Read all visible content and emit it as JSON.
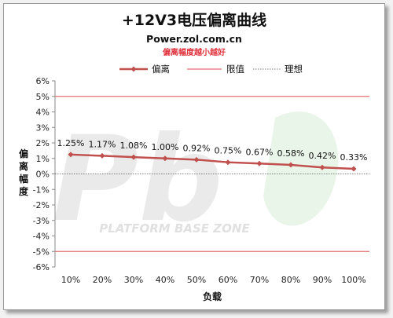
{
  "header": {
    "title": "+12V3电压偏离曲线",
    "subtitle": "Power.zol.com.cn",
    "note": "偏离幅度越小越好"
  },
  "watermark": {
    "logo_text": "Pb",
    "caption": "PLATFORM BASE ZONE"
  },
  "colors": {
    "series": "#c0504d",
    "limit": "#e07070",
    "ideal": "#555555",
    "watermark": "#d9d9d9"
  },
  "chart_data": {
    "type": "line",
    "categories": [
      "10%",
      "20%",
      "30%",
      "40%",
      "50%",
      "60%",
      "70%",
      "80%",
      "90%",
      "100%"
    ],
    "series": [
      {
        "name": "偏离",
        "values": [
          1.25,
          1.17,
          1.08,
          1.0,
          0.92,
          0.75,
          0.67,
          0.58,
          0.42,
          0.33
        ],
        "labels": [
          "1.25%",
          "1.17%",
          "1.08%",
          "1.00%",
          "0.92%",
          "0.75%",
          "0.67%",
          "0.58%",
          "0.42%",
          "0.33%"
        ]
      }
    ],
    "limits": {
      "name": "限值",
      "values": [
        5,
        -5
      ]
    },
    "ideal": {
      "name": "理想",
      "value": 0
    },
    "xlabel": "负载",
    "ylabel": "偏离幅度",
    "ylim": [
      -6,
      6
    ],
    "yticks": [
      6,
      5,
      4,
      3,
      2,
      1,
      0,
      -1,
      -2,
      -3,
      -4,
      -5,
      -6
    ],
    "ytick_labels": [
      "6%",
      "5%",
      "4%",
      "3%",
      "2%",
      "1%",
      "0%",
      "-1%",
      "-2%",
      "-3%",
      "-4%",
      "-5%",
      "-6%"
    ],
    "legend_position": "top"
  }
}
